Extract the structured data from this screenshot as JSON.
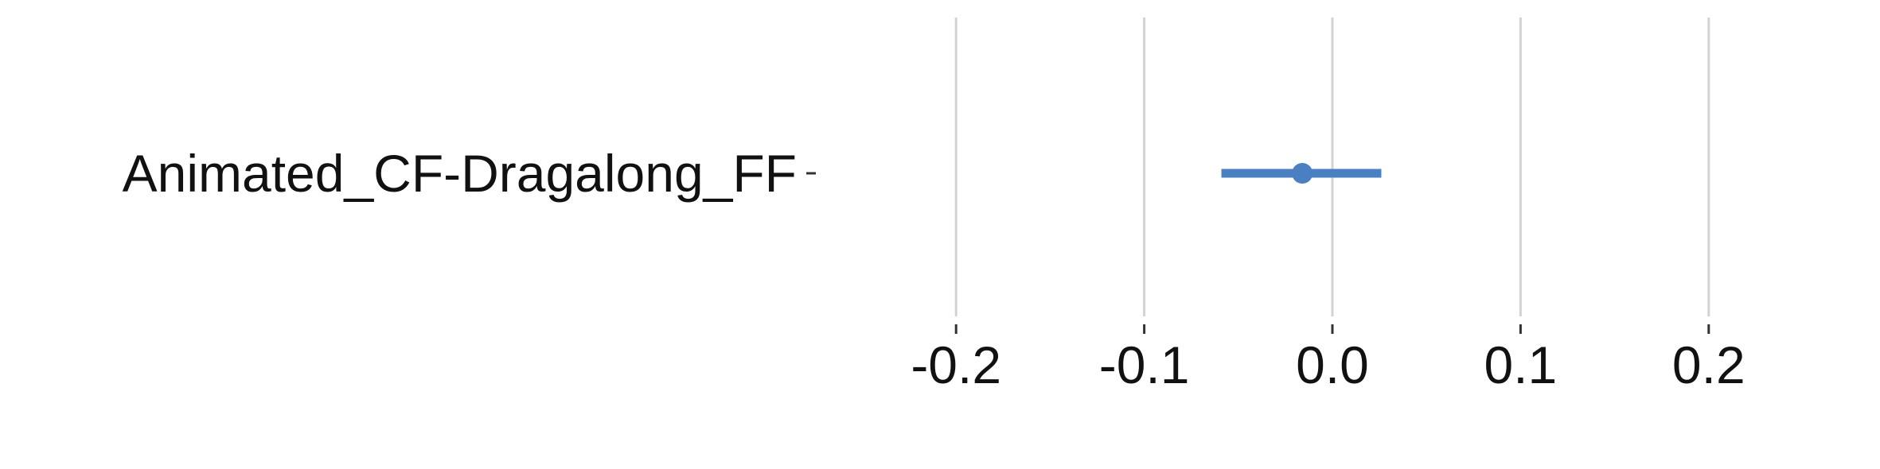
{
  "chart_data": {
    "type": "scatter",
    "title": "",
    "xlabel": "",
    "ylabel": "",
    "xlim": [
      -0.25,
      0.25
    ],
    "x_ticks": [
      -0.2,
      -0.1,
      0.0,
      0.1,
      0.2
    ],
    "x_tick_labels": [
      "-0.2",
      "-0.1",
      "0.0",
      "0.1",
      "0.2"
    ],
    "grid": "vertical",
    "legend": "none",
    "categories": [
      "Animated_CF-Dragalong_FF"
    ],
    "series": [
      {
        "points": [
          {
            "category": "Animated_CF-Dragalong_FF",
            "estimate": -0.016,
            "lower": -0.059,
            "upper": 0.026
          }
        ],
        "color": "#4a7fc1"
      }
    ]
  }
}
